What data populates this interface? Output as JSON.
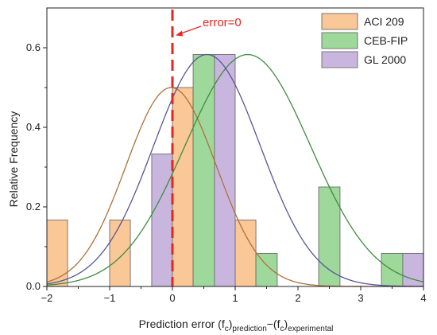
{
  "chart_data": {
    "type": "bar",
    "xlabel": {
      "main": "Prediction error (f",
      "sub1": "c",
      "mid1": ")",
      "sub2": "prediction",
      "mid2": "−(f",
      "sub3": "c",
      "mid3": ")",
      "sub4": "experimental"
    },
    "ylabel": "Relative Frequency",
    "xlim": [
      -2,
      4
    ],
    "ylim": [
      0,
      0.7
    ],
    "x_ticks": [
      -2,
      -1,
      0,
      1,
      2,
      3,
      4
    ],
    "x_tick_labels": [
      "−2",
      "−1",
      "0",
      "1",
      "2",
      "3",
      "4"
    ],
    "y_ticks": [
      0.0,
      0.2,
      0.4,
      0.6
    ],
    "y_tick_labels": [
      "0.0",
      "0.2",
      "0.4",
      "0.6"
    ],
    "series": [
      {
        "name": "ACI 209",
        "color": "#fac796",
        "curve_color": "#b0703a",
        "curve": {
          "mean": -0.02,
          "peak": 0.5,
          "sigma": 0.72
        },
        "bars": [
          {
            "x0": -2.0,
            "x1": -1.67,
            "value": 0.167
          },
          {
            "x0": -1.0,
            "x1": -0.67,
            "value": 0.167
          },
          {
            "x0": 0.0,
            "x1": 0.33,
            "value": 0.5
          },
          {
            "x0": 1.0,
            "x1": 1.33,
            "value": 0.167
          }
        ]
      },
      {
        "name": "CEB-FIP",
        "color": "#9ed99b",
        "curve_color": "#3e8c3e",
        "curve": {
          "mean": 1.2,
          "peak": 0.583,
          "sigma": 1.0
        },
        "bars": [
          {
            "x0": 0.33,
            "x1": 0.67,
            "value": 0.583
          },
          {
            "x0": 1.33,
            "x1": 1.67,
            "value": 0.083
          },
          {
            "x0": 2.33,
            "x1": 2.67,
            "value": 0.25
          },
          {
            "x0": 3.33,
            "x1": 3.67,
            "value": 0.083
          }
        ]
      },
      {
        "name": "GL 2000",
        "color": "#c9b6df",
        "curve_color": "#57569a",
        "curve": {
          "mean": 0.55,
          "peak": 0.583,
          "sigma": 0.85
        },
        "bars": [
          {
            "x0": -0.33,
            "x1": 0.0,
            "value": 0.333
          },
          {
            "x0": 0.67,
            "x1": 1.0,
            "value": 0.583
          },
          {
            "x0": 3.67,
            "x1": 4.0,
            "value": 0.083
          }
        ]
      }
    ],
    "annotation": {
      "text": "error=0",
      "x": 0,
      "color": "#e8251c"
    },
    "legend_position": "top-right",
    "grid": false
  }
}
